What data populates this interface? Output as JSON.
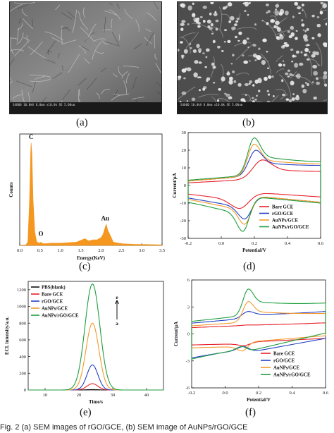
{
  "panels": {
    "a": {
      "label": "(a)",
      "sem_bar_text": "S4800 10.0kV 8.0mm x10.0k SE 5.00um"
    },
    "b": {
      "label": "(b)",
      "sem_bar_text": "S4800 10.0kV 8.0mm x10.0k SE 5.00um"
    },
    "c": {
      "label": "(c)"
    },
    "d": {
      "label": "(d)"
    },
    "e": {
      "label": "(e)"
    },
    "f": {
      "label": "(f)"
    }
  },
  "caption": "Fig. 2   (a) SEM images of rGO/GCE, (b) SEM image of AuNPs/rGO/GCE",
  "chart_data": [
    {
      "id": "c",
      "type": "area",
      "xlabel": "Energy(KeV)",
      "ylabel": "Counts",
      "xlim": [
        0,
        3.5
      ],
      "xticks": [
        0.0,
        0.5,
        1.0,
        1.5,
        2.0,
        2.5,
        3.0,
        3.5
      ],
      "color": "#F5961E",
      "annotations": [
        {
          "text": "C",
          "x": 0.28,
          "y": 0.93
        },
        {
          "text": "O",
          "x": 0.52,
          "y": 0.06
        },
        {
          "text": "Au",
          "x": 2.1,
          "y": 0.2
        }
      ],
      "x": [
        0.0,
        0.15,
        0.2,
        0.24,
        0.27,
        0.28,
        0.3,
        0.33,
        0.37,
        0.42,
        0.5,
        0.52,
        0.55,
        0.6,
        0.8,
        1.0,
        1.2,
        1.4,
        1.6,
        1.7,
        1.8,
        1.9,
        2.0,
        2.05,
        2.1,
        2.13,
        2.16,
        2.2,
        2.25,
        2.3,
        2.5,
        2.8,
        3.1,
        3.5
      ],
      "values": [
        0.0,
        0.005,
        0.03,
        0.4,
        0.85,
        0.92,
        0.82,
        0.4,
        0.12,
        0.03,
        0.02,
        0.03,
        0.02,
        0.015,
        0.02,
        0.02,
        0.025,
        0.03,
        0.06,
        0.04,
        0.05,
        0.05,
        0.07,
        0.1,
        0.16,
        0.19,
        0.14,
        0.11,
        0.07,
        0.03,
        0.015,
        0.01,
        0.008,
        0.005
      ]
    },
    {
      "id": "d",
      "type": "line",
      "xlabel": "Potential/V",
      "ylabel": "Current/μA",
      "xlim": [
        -0.2,
        0.6
      ],
      "ylim": [
        -30,
        30
      ],
      "xticks": [
        -0.2,
        0.0,
        0.2,
        0.4,
        0.6
      ],
      "yticks": [
        -30,
        -20,
        -10,
        0,
        10,
        20,
        30
      ],
      "legend_position": "bottom-right",
      "series": [
        {
          "name": "Bare GCE",
          "color": "#E8202A",
          "ox": 0.25,
          "rx": 0.11,
          "pa": 14.5,
          "pc": -13,
          "w": 0.08,
          "bp": 1.5,
          "bpe": 5.5,
          "bn": -1.5,
          "bne": -6.5
        },
        {
          "name": "rGO/GCE",
          "color": "#2340C9",
          "ox": 0.21,
          "rx": 0.14,
          "pa": 20,
          "pc": -19,
          "w": 0.06,
          "bp": 2.5,
          "bpe": 8.5,
          "bn": -2.5,
          "bne": -9.5
        },
        {
          "name": "AuNPs/GCE",
          "color": "#F39A2B",
          "ox": 0.2,
          "rx": 0.14,
          "pa": 23.5,
          "pc": -22,
          "w": 0.055,
          "bp": 2.5,
          "bpe": 8.5,
          "bn": -2.5,
          "bne": -9.5
        },
        {
          "name": "AuNPs/rGO/GCE",
          "color": "#1E9E3E",
          "ox": 0.2,
          "rx": 0.13,
          "pa": 27,
          "pc": -26,
          "w": 0.055,
          "bp": 3,
          "bpe": 9,
          "bn": -3,
          "bne": -10
        }
      ]
    },
    {
      "id": "e",
      "type": "line",
      "xlabel": "Time/s",
      "ylabel": "ECL intensity/a.u.",
      "xlim": [
        5,
        45
      ],
      "ylim": [
        0,
        1300
      ],
      "xticks": [
        10,
        20,
        30,
        40
      ],
      "yticks": [
        0,
        200,
        400,
        600,
        800,
        1000,
        1200
      ],
      "legend_position": "top-left",
      "annotations": [
        {
          "text": "e",
          "position": "top"
        },
        {
          "text": "a",
          "position": "bottom"
        }
      ],
      "series": [
        {
          "name": "PBS(blank)",
          "color": "#111111",
          "peak_x": 24,
          "peak": 5,
          "width": 2.3
        },
        {
          "name": "Bare GCE",
          "color": "#E8202A",
          "peak_x": 24,
          "peak": 75,
          "width": 2.3
        },
        {
          "name": "rGO/GCE",
          "color": "#2340C9",
          "peak_x": 24,
          "peak": 300,
          "width": 2.3
        },
        {
          "name": "AuNPs/GCE",
          "color": "#F39A2B",
          "peak_x": 24,
          "peak": 800,
          "width": 2.7
        },
        {
          "name": "AuNPs/rGO/GCE",
          "color": "#1E9E3E",
          "peak_x": 24,
          "peak": 1270,
          "width": 3.1
        }
      ]
    },
    {
      "id": "f",
      "type": "line",
      "xlabel": "Potential/V",
      "ylabel": "Current/μA",
      "xlim": [
        -0.2,
        0.6
      ],
      "ylim": [
        -6,
        6
      ],
      "xticks": [
        -0.2,
        0.0,
        0.2,
        0.4,
        0.6
      ],
      "yticks": [
        -6,
        -3,
        0,
        3,
        6
      ],
      "legend_position": "bottom-right",
      "series": [
        {
          "name": "Bare GCE",
          "color": "#E8202A",
          "ox": 0.15,
          "rx": 0.11,
          "pa": 1.0,
          "pc": -1.3,
          "w": 0.05,
          "bp": 0.7,
          "bpe": 1.3,
          "bn": -1.2,
          "bne": -0.5
        },
        {
          "name": "rGO/GCE",
          "color": "#2340C9",
          "ox": 0.14,
          "rx": 0.11,
          "pa": 2.5,
          "pc": -1.4,
          "w": 0.05,
          "bp": 1.2,
          "bpe": 2.5,
          "bn": -3.2,
          "bne": -0.5
        },
        {
          "name": "AuNPs/GCE",
          "color": "#F39A2B",
          "ox": 0.14,
          "rx": 0.1,
          "pa": 3.6,
          "pc": -1.9,
          "w": 0.045,
          "bp": 0.9,
          "bpe": 1.9,
          "bn": -1.4,
          "bne": -0.2
        },
        {
          "name": "AuNPs/rGO/GCE",
          "color": "#1E9E3E",
          "ox": 0.14,
          "rx": 0.1,
          "pa": 5.0,
          "pc": -1.4,
          "w": 0.045,
          "bp": 1.4,
          "bpe": 3.0,
          "bn": -3.4,
          "bne": 0.1
        }
      ]
    }
  ]
}
